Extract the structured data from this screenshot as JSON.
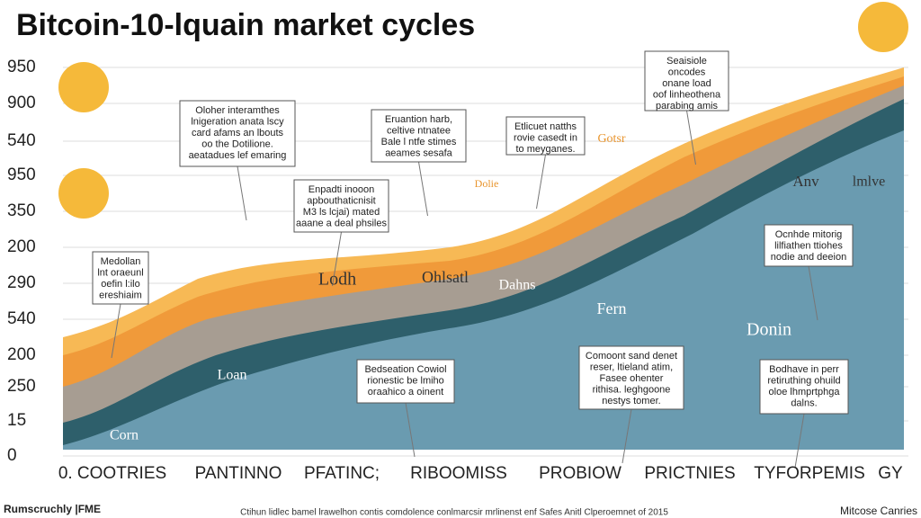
{
  "title": "Bitcoin-10-lquain market cycles",
  "y_labels": [
    "950",
    "900",
    "540",
    "950",
    "350",
    "200",
    "290",
    "540",
    "200",
    "250",
    "15",
    "0"
  ],
  "x_labels": [
    "0. COOTRIES",
    "PANTINNO",
    "PFATINC;",
    "RIBOOMISS",
    "PROBIOW",
    "PRICTNIES",
    "TYFORPEMIS",
    "GY"
  ],
  "notes": [
    {
      "lines": [
        "Oloher interamthes",
        "lnigeration anata lscy",
        "card afams an lbouts",
        "oo the Dotilione.",
        "aeatadues lef emaring"
      ]
    },
    {
      "lines": [
        "Enpadti inooon",
        "apbouthaticnisit",
        "M3 ls lcjai) mated",
        "aaane a deal phsiles"
      ]
    },
    {
      "lines": [
        "Eruantion harb,",
        "celtive ntnatee",
        "Bale l ntfe stimes",
        "aeames sesafa"
      ]
    },
    {
      "lines": [
        "Etlicuet natths",
        "rovie casedt in",
        "to meyganes."
      ]
    },
    {
      "lines": [
        "Seaisiole",
        "oncodes",
        "onane load",
        "oof linheothena",
        "parabing amis"
      ]
    },
    {
      "lines": [
        "Medollan",
        "lnt oraeunl",
        "oefin l:ilo",
        "ereshiaim"
      ]
    },
    {
      "lines": [
        "Bedseation Cowiol",
        "rionestic be lmiho",
        "oraahico a oinent"
      ]
    },
    {
      "lines": [
        "Comoont sand denet",
        "reser, ltieland atim,",
        "Fasee ohenter",
        "rithisa. leghgoone",
        "nestys tomer."
      ]
    },
    {
      "lines": [
        "Ocnhde mitorig",
        "lilfiathen ttiohes",
        "nodie and deeion"
      ]
    },
    {
      "lines": [
        "Bodhave in perr",
        "retiruthing ohuild",
        "oloe lhmprtphga",
        "dalns."
      ]
    }
  ],
  "labels": [
    "Lodh",
    "Dahns",
    "Fern",
    "Donin",
    "Loan",
    "Corn",
    "Anv",
    "lmlve",
    "Dolie",
    "Gotsr",
    "Ohlsatl"
  ],
  "footer": {
    "left": "Rumscruchly |FME",
    "center": "Ctihun lidlec bamel lrawelhon contis comdolence conlmarcsir mrlinenst enf Safes Anitl Clperoemnet of 2015",
    "right": "Mitcose Canries"
  }
}
